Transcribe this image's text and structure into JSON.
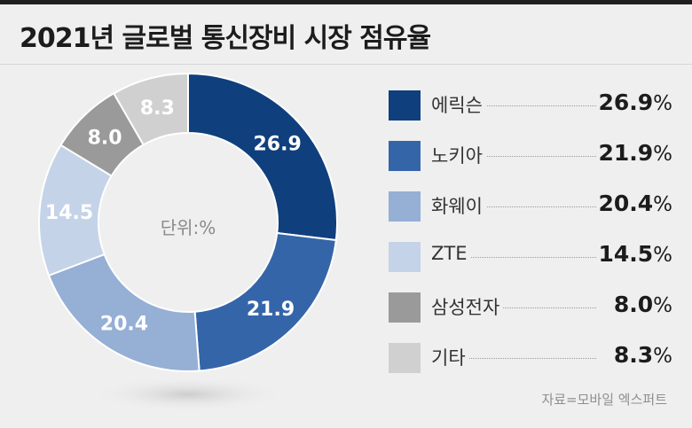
{
  "title": "2021년 글로벌 통신장비 시장 점유율",
  "source": "자료=모바일 엑스퍼트",
  "chart_data": {
    "type": "pie",
    "center_label": "단위:%",
    "slices": [
      {
        "name": "에릭슨",
        "value": 26.9,
        "label": "26.9",
        "legend_value": "26.9",
        "color": "#103f7d",
        "text_color": "#ffffff"
      },
      {
        "name": "노키아",
        "value": 21.9,
        "label": "21.9",
        "legend_value": "21.9",
        "color": "#3565a9",
        "text_color": "#ffffff"
      },
      {
        "name": "화웨이",
        "value": 20.4,
        "label": "20.4",
        "legend_value": "20.4",
        "color": "#95afd5",
        "text_color": "#ffffff"
      },
      {
        "name": "ZTE",
        "value": 14.5,
        "label": "14.5",
        "legend_value": "14.5",
        "color": "#c5d3e8",
        "text_color": "#ffffff"
      },
      {
        "name": "삼성전자",
        "value": 8.0,
        "label": "8.0",
        "legend_value": "8.0",
        "color": "#9a9a9a",
        "text_color": "#ffffff"
      },
      {
        "name": "기타",
        "value": 8.3,
        "label": "8.3",
        "legend_value": "8.3",
        "color": "#d0d0d0",
        "text_color": "#ffffff"
      }
    ],
    "unit": "%"
  }
}
